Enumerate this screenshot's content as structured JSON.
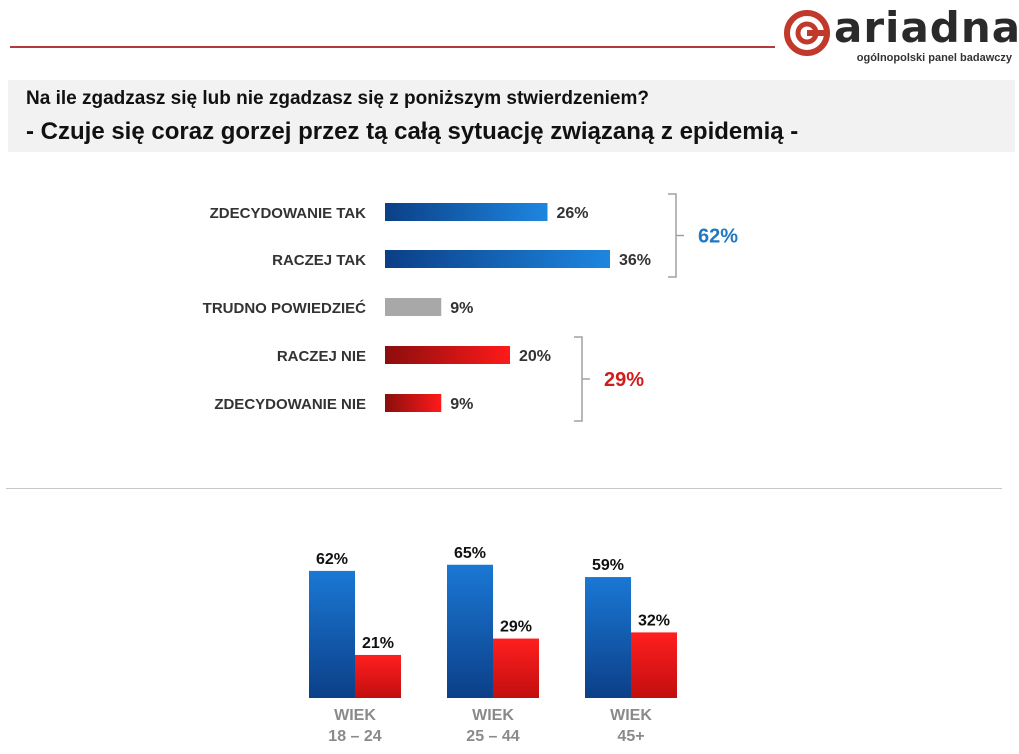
{
  "logo": {
    "brand": "ariadna",
    "tagline": "ogólnopolski panel badawczy",
    "icon": "ariadna-ring-icon",
    "color": "#c0392b"
  },
  "question": {
    "line1": "Na ile zgadzasz się lub nie zgadzasz się z poniższym stwierdzeniem?",
    "line2": "- Czuje się coraz gorzej przez tą całą sytuację związaną z epidemią -"
  },
  "colors": {
    "blue": "#1a6fc9",
    "gray": "#a6a6a6",
    "red": "#e01414",
    "total_blue": "#1f78c1",
    "total_red": "#d11c1c"
  },
  "chart_data": [
    {
      "type": "bar",
      "orientation": "horizontal",
      "title": "",
      "categories": [
        "ZDECYDOWANIE TAK",
        "RACZEJ TAK",
        "TRUDNO POWIEDZIEĆ",
        "RACZEJ NIE",
        "ZDECYDOWANIE NIE"
      ],
      "values": [
        26,
        36,
        9,
        20,
        9
      ],
      "value_labels": [
        "26%",
        "36%",
        "9%",
        "20%",
        "9%"
      ],
      "bar_colors": [
        "blue",
        "blue",
        "gray",
        "red",
        "red"
      ],
      "unit": "%",
      "xlim": [
        0,
        40
      ],
      "groups": [
        {
          "label": "62%",
          "value": 62,
          "from": 0,
          "to": 1,
          "color": "blue"
        },
        {
          "label": "29%",
          "value": 29,
          "from": 3,
          "to": 4,
          "color": "red"
        }
      ]
    },
    {
      "type": "bar",
      "orientation": "vertical",
      "categories": [
        [
          "WIEK",
          "18 – 24"
        ],
        [
          "WIEK",
          "25 – 44"
        ],
        [
          "WIEK",
          "45+"
        ]
      ],
      "series": [
        {
          "values": [
            62,
            65,
            59
          ],
          "value_labels": [
            "62%",
            "65%",
            "59%"
          ],
          "color": "blue"
        },
        {
          "values": [
            21,
            29,
            32
          ],
          "value_labels": [
            "21%",
            "29%",
            "32%"
          ],
          "color": "red"
        }
      ],
      "ylim": [
        0,
        100
      ]
    }
  ]
}
